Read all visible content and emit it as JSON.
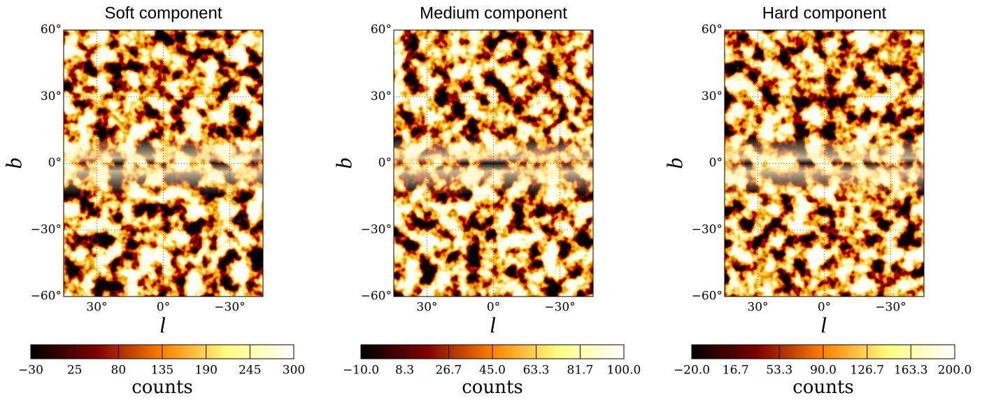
{
  "chart_data": [
    {
      "type": "heatmap",
      "title": "Soft component",
      "xlabel": "l",
      "ylabel": "b",
      "colormap": "afmhot",
      "grid": true,
      "xlim": [
        45,
        -45
      ],
      "ylim": [
        -60,
        60
      ],
      "xticks": [
        {
          "value": 30,
          "label": "30°"
        },
        {
          "value": 0,
          "label": "0°"
        },
        {
          "value": -30,
          "label": "−30°"
        }
      ],
      "yticks": [
        {
          "value": -60,
          "label": "−60°"
        },
        {
          "value": -30,
          "label": "−30°"
        },
        {
          "value": 0,
          "label": "0°"
        },
        {
          "value": 30,
          "label": "30°"
        },
        {
          "value": 60,
          "label": "60°"
        }
      ],
      "colorbar_label": "counts",
      "clim": [
        -30,
        300
      ],
      "cticks": [
        {
          "value": -30,
          "label": "−30"
        },
        25,
        80,
        135,
        190,
        245,
        300
      ]
    },
    {
      "type": "heatmap",
      "title": "Medium component",
      "xlabel": "l",
      "ylabel": "b",
      "colormap": "afmhot",
      "grid": true,
      "xlim": [
        45,
        -45
      ],
      "ylim": [
        -60,
        60
      ],
      "xticks": [
        {
          "value": 30,
          "label": "30°"
        },
        {
          "value": 0,
          "label": "0°"
        },
        {
          "value": -30,
          "label": "−30°"
        }
      ],
      "yticks": [
        {
          "value": -60,
          "label": "−60°"
        },
        {
          "value": -30,
          "label": "−30°"
        },
        {
          "value": 0,
          "label": "0°"
        },
        {
          "value": 30,
          "label": "30°"
        },
        {
          "value": 60,
          "label": "60°"
        }
      ],
      "colorbar_label": "counts",
      "clim": [
        -10,
        100
      ],
      "cticks": [
        {
          "value": -10,
          "label": "−10.0"
        },
        8.3,
        26.7,
        {
          "value": 45,
          "label": "45.0"
        },
        63.3,
        81.7,
        {
          "value": 100,
          "label": "100.0"
        }
      ]
    },
    {
      "type": "heatmap",
      "title": "Hard component",
      "xlabel": "l",
      "ylabel": "b",
      "colormap": "afmhot",
      "grid": true,
      "xlim": [
        45,
        -45
      ],
      "ylim": [
        -60,
        60
      ],
      "xticks": [
        {
          "value": 30,
          "label": "30°"
        },
        {
          "value": 0,
          "label": "0°"
        },
        {
          "value": -30,
          "label": "−30°"
        }
      ],
      "yticks": [
        {
          "value": -60,
          "label": "−60°"
        },
        {
          "value": -30,
          "label": "−30°"
        },
        {
          "value": 0,
          "label": "0°"
        },
        {
          "value": 30,
          "label": "30°"
        },
        {
          "value": 60,
          "label": "60°"
        }
      ],
      "colorbar_label": "counts",
      "clim": [
        -20,
        200
      ],
      "cticks": [
        {
          "value": -20,
          "label": "−20.0"
        },
        16.7,
        53.3,
        {
          "value": 90,
          "label": "90.0"
        },
        126.7,
        163.3,
        {
          "value": 200,
          "label": "200.0"
        }
      ]
    }
  ]
}
